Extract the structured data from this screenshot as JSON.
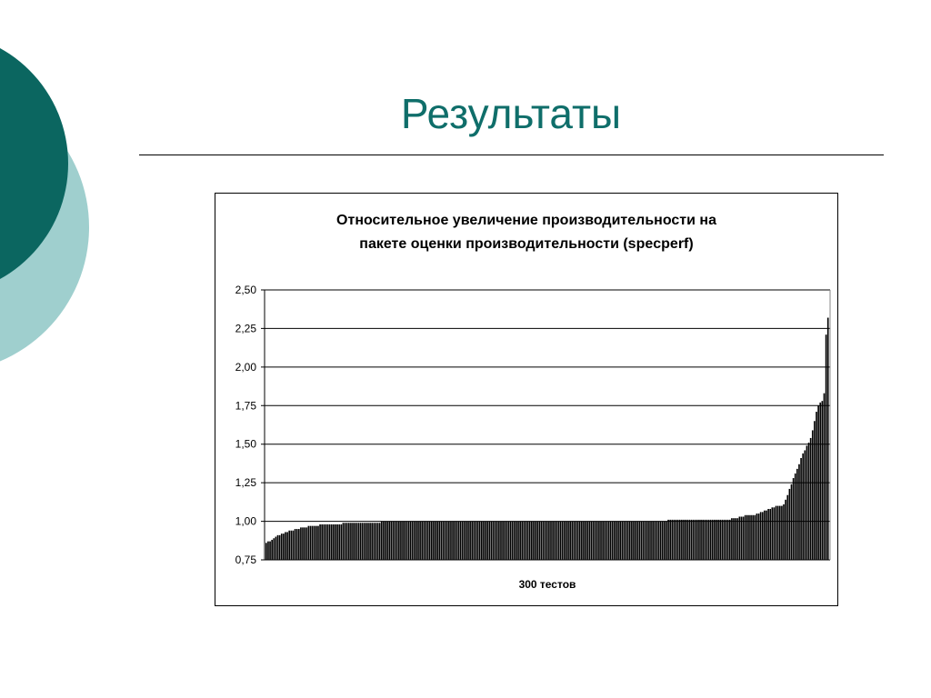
{
  "slide": {
    "title": "Результаты"
  },
  "colors": {
    "title": "#0f6e6a",
    "decor_dark": "#0b6660",
    "decor_light": "#9fcfce",
    "bars": "#000000",
    "grid": "#000000"
  },
  "chart_data": {
    "type": "bar",
    "title_lines": [
      "Относительное увеличение производительности на",
      "пакете оценки производительности (specperf)"
    ],
    "xlabel": "300 тестов",
    "ylabel": "",
    "ylim": [
      0.75,
      2.5
    ],
    "yticks": [
      "0,75",
      "1,00",
      "1,25",
      "1,50",
      "1,75",
      "2,00",
      "2,25",
      "2,50"
    ],
    "grid": true,
    "legend": "none",
    "series": [
      {
        "values": [
          0.86,
          0.87,
          0.87,
          0.88,
          0.89,
          0.9,
          0.91,
          0.91,
          0.92,
          0.92,
          0.93,
          0.93,
          0.94,
          0.94,
          0.94,
          0.95,
          0.95,
          0.95,
          0.96,
          0.96,
          0.96,
          0.96,
          0.97,
          0.97,
          0.97,
          0.97,
          0.97,
          0.97,
          0.98,
          0.98,
          0.98,
          0.98,
          0.98,
          0.98,
          0.98,
          0.98,
          0.98,
          0.98,
          0.98,
          0.98,
          0.99,
          0.99,
          0.99,
          0.99,
          0.99,
          0.99,
          0.99,
          0.99,
          0.99,
          0.99,
          0.99,
          0.99,
          0.99,
          0.99,
          0.99,
          0.99,
          0.99,
          0.99,
          0.99,
          0.99,
          1.0,
          1.0,
          1.0,
          1.0,
          1.0,
          1.0,
          1.0,
          1.0,
          1.0,
          1.0,
          1.0,
          1.0,
          1.0,
          1.0,
          1.0,
          1.0,
          1.0,
          1.0,
          1.0,
          1.0,
          1.0,
          1.0,
          1.0,
          1.0,
          1.0,
          1.0,
          1.0,
          1.0,
          1.0,
          1.0,
          1.0,
          1.0,
          1.0,
          1.0,
          1.0,
          1.0,
          1.0,
          1.0,
          1.0,
          1.0,
          1.0,
          1.0,
          1.0,
          1.0,
          1.0,
          1.0,
          1.0,
          1.0,
          1.0,
          1.0,
          1.0,
          1.0,
          1.0,
          1.0,
          1.0,
          1.0,
          1.0,
          1.0,
          1.0,
          1.0,
          1.0,
          1.0,
          1.0,
          1.0,
          1.0,
          1.0,
          1.0,
          1.0,
          1.0,
          1.0,
          1.0,
          1.0,
          1.0,
          1.0,
          1.0,
          1.0,
          1.0,
          1.0,
          1.0,
          1.0,
          1.0,
          1.0,
          1.0,
          1.0,
          1.0,
          1.0,
          1.0,
          1.0,
          1.0,
          1.0,
          1.0,
          1.0,
          1.0,
          1.0,
          1.0,
          1.0,
          1.0,
          1.0,
          1.0,
          1.0,
          1.0,
          1.0,
          1.0,
          1.0,
          1.0,
          1.0,
          1.0,
          1.0,
          1.0,
          1.0,
          1.0,
          1.0,
          1.0,
          1.0,
          1.0,
          1.0,
          1.0,
          1.0,
          1.0,
          1.0,
          1.0,
          1.0,
          1.0,
          1.0,
          1.0,
          1.0,
          1.0,
          1.0,
          1.0,
          1.0,
          1.0,
          1.0,
          1.0,
          1.0,
          1.0,
          1.0,
          1.0,
          1.0,
          1.0,
          1.0,
          1.0,
          1.0,
          1.0,
          1.0,
          1.0,
          1.0,
          1.0,
          1.0,
          1.0,
          1.01,
          1.01,
          1.01,
          1.01,
          1.01,
          1.01,
          1.01,
          1.01,
          1.01,
          1.01,
          1.01,
          1.01,
          1.01,
          1.01,
          1.01,
          1.01,
          1.01,
          1.01,
          1.01,
          1.01,
          1.01,
          1.01,
          1.01,
          1.01,
          1.01,
          1.01,
          1.01,
          1.01,
          1.01,
          1.01,
          1.01,
          1.01,
          1.01,
          1.02,
          1.02,
          1.02,
          1.02,
          1.03,
          1.03,
          1.03,
          1.04,
          1.04,
          1.04,
          1.04,
          1.04,
          1.04,
          1.05,
          1.05,
          1.06,
          1.06,
          1.07,
          1.07,
          1.08,
          1.08,
          1.09,
          1.09,
          1.1,
          1.1,
          1.1,
          1.1,
          1.11,
          1.14,
          1.17,
          1.21,
          1.24,
          1.28,
          1.31,
          1.34,
          1.37,
          1.41,
          1.44,
          1.46,
          1.49,
          1.51,
          1.54,
          1.59,
          1.65,
          1.71,
          1.75,
          1.77,
          1.78,
          1.83,
          2.21,
          2.32
        ]
      }
    ]
  }
}
